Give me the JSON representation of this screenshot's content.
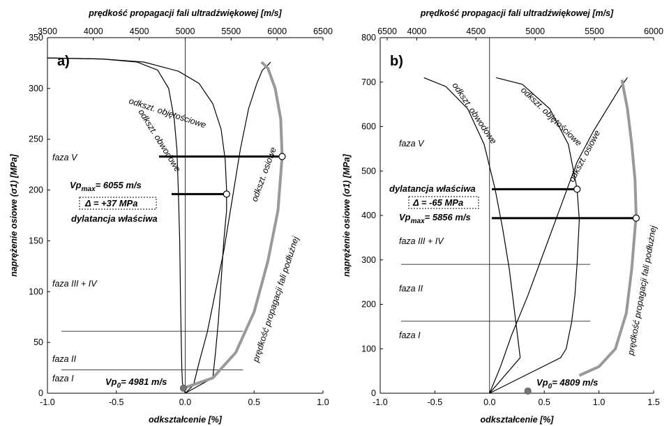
{
  "chart_data": [
    {
      "type": "line",
      "panel_label": "a)",
      "xlabel_bottom": "odkształcenie [%]",
      "xlabel_top": "prędkość propagacji fali ultradźwiękowej [m/s]",
      "ylabel": "naprężenie osiowe (σ1) [MPa]",
      "ylim": [
        0,
        350
      ],
      "xlim_bottom": [
        -1.0,
        1.0
      ],
      "xlim_top": [
        3500,
        6500
      ],
      "yticks": [
        "0",
        "50",
        "100",
        "150",
        "200",
        "250",
        "300",
        "350"
      ],
      "xticks_bottom": [
        "-1.0",
        "-0.5",
        "0.0",
        "0.5",
        "1.0"
      ],
      "xticks_top": [
        "3500",
        "4000",
        "4500",
        "5000",
        "5500",
        "6000",
        "6500"
      ],
      "annotations": {
        "vpmax": "Vpmax= 6055 m/s",
        "delta": "Δ = +37 MPa",
        "dilatancy": "dylatancja właściwa",
        "vp0": "Vp0= 4981 m/s",
        "phase_v": "faza V",
        "phase_iii_iv": "faza III + IV",
        "phase_ii": "faza II",
        "phase_i": "faza I"
      },
      "series": [
        {
          "name": "odkszt. obwodowe",
          "points": [
            [
              -1.0,
              330
            ],
            [
              -0.6,
              329
            ],
            [
              -0.35,
              326
            ],
            [
              -0.2,
              318
            ],
            [
              -0.12,
              300
            ],
            [
              -0.08,
              270
            ],
            [
              -0.06,
              240
            ],
            [
              -0.05,
              200
            ],
            [
              -0.04,
              150
            ],
            [
              -0.035,
              100
            ],
            [
              -0.03,
              60
            ],
            [
              -0.025,
              25
            ],
            [
              -0.02,
              10
            ],
            [
              0,
              0
            ]
          ]
        },
        {
          "name": "odkszt. objętościowe",
          "points": [
            [
              -1.0,
              330
            ],
            [
              -0.6,
              329
            ],
            [
              -0.3,
              326
            ],
            [
              -0.05,
              317
            ],
            [
              0.1,
              305
            ],
            [
              0.2,
              285
            ],
            [
              0.26,
              260
            ],
            [
              0.29,
              230
            ],
            [
              0.3,
              200
            ],
            [
              0.3,
              180
            ],
            [
              0.28,
              150
            ],
            [
              0.26,
              110
            ],
            [
              0.24,
              70
            ],
            [
              0.22,
              40
            ],
            [
              0.2,
              15
            ],
            [
              0,
              0
            ]
          ]
        },
        {
          "name": "odkszt. osiowe",
          "points": [
            [
              0,
              0
            ],
            [
              0.06,
              8
            ],
            [
              0.1,
              30
            ],
            [
              0.16,
              60
            ],
            [
              0.22,
              100
            ],
            [
              0.28,
              140
            ],
            [
              0.34,
              190
            ],
            [
              0.4,
              240
            ],
            [
              0.46,
              280
            ],
            [
              0.52,
              305
            ],
            [
              0.56,
              318
            ],
            [
              0.6,
              323
            ],
            [
              0.62,
              326
            ]
          ]
        },
        {
          "name": "prędkość propagacji fali podłużnej",
          "velocity_points": [
            [
              4981,
              5
            ],
            [
              5300,
              15
            ],
            [
              5550,
              40
            ],
            [
              5750,
              80
            ],
            [
              5900,
              130
            ],
            [
              6010,
              180
            ],
            [
              6055,
              233
            ],
            [
              6040,
              270
            ],
            [
              5980,
              300
            ],
            [
              5900,
              320
            ],
            [
              5830,
              326
            ]
          ]
        }
      ],
      "markers": {
        "vpmax": [
          6055,
          233
        ],
        "dilatancy": [
          0.3,
          196
        ],
        "vp0": [
          4981,
          5
        ]
      },
      "phase_lines": [
        61,
        23
      ]
    },
    {
      "type": "line",
      "panel_label": "b)",
      "xlabel_bottom": "odkształcenie [%]",
      "xlabel_top": "prędkość propagacji fali ultradźwiękowej [m/s]",
      "ylabel": "naprężenie osiowe (σ1) [MPa]",
      "ylim": [
        0,
        800
      ],
      "xlim_bottom": [
        -1.0,
        1.5
      ],
      "xlim_top": [
        6500,
        6000
      ],
      "yticks": [
        "0",
        "100",
        "200",
        "300",
        "400",
        "500",
        "600",
        "700",
        "800"
      ],
      "xticks_bottom": [
        "-1.0",
        "-0.5",
        "0.0",
        "0.5",
        "1.0",
        "1.5"
      ],
      "xticks_top": [
        "6500",
        "4000",
        "4500",
        "5000",
        "5500",
        "6000"
      ],
      "annotations": {
        "vpmax": "Vpmax= 5856 m/s",
        "delta": "Δ = -65 MPa",
        "dilatancy": "dylatancja właściwa",
        "vp0": "Vp0= 4809 m/s",
        "phase_v": "faza V",
        "phase_iii_iv": "faza III + IV",
        "phase_ii": "faza II",
        "phase_i": "faza I"
      },
      "series": [
        {
          "name": "odkszt. obwodowe",
          "points": [
            [
              -0.6,
              710
            ],
            [
              -0.4,
              690
            ],
            [
              -0.2,
              640
            ],
            [
              -0.05,
              560
            ],
            [
              0.05,
              460
            ],
            [
              0.12,
              370
            ],
            [
              0.18,
              280
            ],
            [
              0.22,
              200
            ],
            [
              0.26,
              120
            ],
            [
              0.28,
              80
            ],
            [
              0,
              0
            ]
          ]
        },
        {
          "name": "odkszt. objętościowe",
          "points": [
            [
              0.06,
              710
            ],
            [
              0.3,
              695
            ],
            [
              0.55,
              640
            ],
            [
              0.72,
              560
            ],
            [
              0.8,
              460
            ],
            [
              0.82,
              390
            ],
            [
              0.8,
              290
            ],
            [
              0.78,
              220
            ],
            [
              0.75,
              160
            ],
            [
              0.7,
              100
            ],
            [
              0.65,
              80
            ],
            [
              0,
              0
            ]
          ]
        },
        {
          "name": "odkszt. osiowe",
          "points": [
            [
              0,
              0
            ],
            [
              0.1,
              60
            ],
            [
              0.2,
              130
            ],
            [
              0.35,
              220
            ],
            [
              0.5,
              320
            ],
            [
              0.65,
              420
            ],
            [
              0.8,
              520
            ],
            [
              0.95,
              590
            ],
            [
              1.1,
              650
            ],
            [
              1.2,
              690
            ],
            [
              1.26,
              710
            ]
          ]
        },
        {
          "name": "prędkość propagacji fali podłużnej",
          "points": [
            [
              0.82,
              40
            ],
            [
              1.0,
              60
            ],
            [
              1.15,
              100
            ],
            [
              1.25,
              180
            ],
            [
              1.3,
              280
            ],
            [
              1.33,
              370
            ],
            [
              1.34,
              400
            ],
            [
              1.33,
              480
            ],
            [
              1.3,
              560
            ],
            [
              1.26,
              640
            ],
            [
              1.21,
              705
            ]
          ]
        }
      ],
      "markers": {
        "vpmax": [
          1.34,
          394
        ],
        "dilatancy": [
          0.8,
          459
        ],
        "vp0": [
          0.35,
          5
        ]
      },
      "phase_lines": [
        290,
        162
      ]
    }
  ]
}
